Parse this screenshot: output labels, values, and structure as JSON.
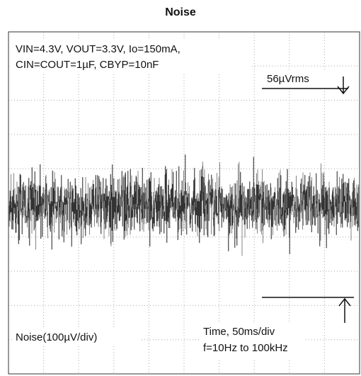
{
  "chart_data": {
    "type": "oscilloscope",
    "title": "Noise",
    "annotations": [
      "VIN=4.3V, VOUT=3.3V, Io=150mA,",
      "CIN=COUT=1µF, CBYP=10nF",
      "56µVrms",
      "Noise(100µV/div)",
      "Time, 50ms/div",
      "f=10Hz to 100kHz"
    ],
    "grid": true
  }
}
